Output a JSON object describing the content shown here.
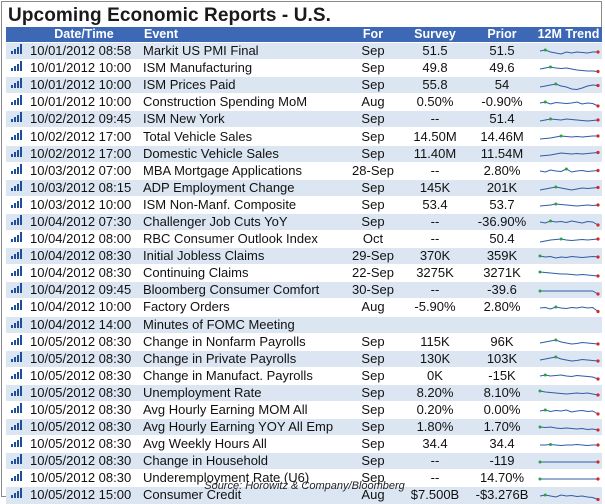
{
  "title": "Upcoming Economic Reports - U.S.",
  "headers": {
    "datetime": "Date/Time",
    "event": "Event",
    "for": "For",
    "survey": "Survey",
    "prior": "Prior",
    "trend": "12M Trend"
  },
  "rows": [
    {
      "datetime": "10/01/2012 08:58",
      "event": "Markit US PMI Final",
      "for": "Sep",
      "survey": "51.5",
      "prior": "51.5",
      "trend": [
        0.6,
        0.7,
        0.5,
        0.4,
        0.3,
        0.5,
        0.4,
        0.5,
        0.45,
        0.4,
        0.5,
        0.5
      ]
    },
    {
      "datetime": "10/01/2012 10:00",
      "event": "ISM Manufacturing",
      "for": "Sep",
      "survey": "49.8",
      "prior": "49.6",
      "trend": [
        0.5,
        0.6,
        0.7,
        0.6,
        0.55,
        0.6,
        0.5,
        0.4,
        0.35,
        0.3,
        0.3,
        0.25
      ]
    },
    {
      "datetime": "10/01/2012 10:00",
      "event": "ISM Prices Paid",
      "for": "Sep",
      "survey": "55.8",
      "prior": "54",
      "trend": [
        0.4,
        0.5,
        0.6,
        0.7,
        0.5,
        0.4,
        0.2,
        0.15,
        0.3,
        0.5,
        0.6,
        0.55
      ]
    },
    {
      "datetime": "10/01/2012 10:00",
      "event": "Construction Spending MoM",
      "for": "Aug",
      "survey": "0.50%",
      "prior": "-0.90%",
      "trend": [
        0.5,
        0.6,
        0.4,
        0.55,
        0.5,
        0.45,
        0.5,
        0.6,
        0.4,
        0.5,
        0.45,
        0.2
      ]
    },
    {
      "datetime": "10/02/2012 09:45",
      "event": "ISM New York",
      "for": "Sep",
      "survey": "--",
      "prior": "51.4",
      "trend": [
        0.4,
        0.5,
        0.6,
        0.55,
        0.5,
        0.6,
        0.55,
        0.5,
        0.45,
        0.4,
        0.45,
        0.5
      ]
    },
    {
      "datetime": "10/02/2012 17:00",
      "event": "Total Vehicle Sales",
      "for": "Sep",
      "survey": "14.50M",
      "prior": "14.46M",
      "trend": [
        0.3,
        0.35,
        0.4,
        0.5,
        0.6,
        0.55,
        0.5,
        0.55,
        0.5,
        0.55,
        0.6,
        0.6
      ]
    },
    {
      "datetime": "10/02/2012 17:00",
      "event": "Domestic Vehicle Sales",
      "for": "Sep",
      "survey": "11.40M",
      "prior": "11.54M",
      "trend": [
        0.3,
        0.35,
        0.4,
        0.5,
        0.6,
        0.55,
        0.5,
        0.55,
        0.5,
        0.55,
        0.6,
        0.65
      ]
    },
    {
      "datetime": "10/03/2012 07:00",
      "event": "MBA Mortgage Applications",
      "for": "28-Sep",
      "survey": "--",
      "prior": "2.80%",
      "trend": [
        0.5,
        0.4,
        0.6,
        0.5,
        0.45,
        0.7,
        0.4,
        0.5,
        0.55,
        0.45,
        0.5,
        0.55
      ]
    },
    {
      "datetime": "10/03/2012 08:15",
      "event": "ADP Employment Change",
      "for": "Sep",
      "survey": "145K",
      "prior": "201K",
      "trend": [
        0.3,
        0.4,
        0.5,
        0.6,
        0.5,
        0.4,
        0.3,
        0.4,
        0.5,
        0.45,
        0.5,
        0.55
      ]
    },
    {
      "datetime": "10/03/2012 10:00",
      "event": "ISM Non-Manf. Composite",
      "for": "Sep",
      "survey": "53.4",
      "prior": "53.7",
      "trend": [
        0.4,
        0.45,
        0.5,
        0.6,
        0.55,
        0.5,
        0.45,
        0.4,
        0.45,
        0.5,
        0.45,
        0.5
      ]
    },
    {
      "datetime": "10/04/2012 07:30",
      "event": "Challenger Job Cuts YoY",
      "for": "Sep",
      "survey": "--",
      "prior": "-36.90%",
      "trend": [
        0.5,
        0.4,
        0.6,
        0.5,
        0.55,
        0.45,
        0.6,
        0.5,
        0.4,
        0.55,
        0.5,
        0.2
      ]
    },
    {
      "datetime": "10/04/2012 08:00",
      "event": "RBC Consumer Outlook Index",
      "for": "Oct",
      "survey": "--",
      "prior": "50.4",
      "trend": [
        0.3,
        0.4,
        0.5,
        0.55,
        0.6,
        0.5,
        0.45,
        0.5,
        0.55,
        0.5,
        0.55,
        0.6
      ]
    },
    {
      "datetime": "10/04/2012 08:30",
      "event": "Initial Jobless Claims",
      "for": "29-Sep",
      "survey": "370K",
      "prior": "359K",
      "trend": [
        0.6,
        0.5,
        0.55,
        0.4,
        0.5,
        0.45,
        0.55,
        0.5,
        0.45,
        0.5,
        0.55,
        0.5
      ]
    },
    {
      "datetime": "10/04/2012 08:30",
      "event": "Continuing Claims",
      "for": "22-Sep",
      "survey": "3275K",
      "prior": "3271K",
      "trend": [
        0.7,
        0.65,
        0.6,
        0.55,
        0.5,
        0.5,
        0.45,
        0.4,
        0.45,
        0.4,
        0.35,
        0.3
      ]
    },
    {
      "datetime": "10/04/2012 09:45",
      "event": "Bloomberg Consumer Comfort",
      "for": "30-Sep",
      "survey": "--",
      "prior": "-39.6",
      "trend": [
        0.5,
        0.5,
        0.5,
        0.5,
        0.5,
        0.5,
        0.5,
        0.5,
        0.5,
        0.5,
        0.5,
        0.2
      ]
    },
    {
      "datetime": "10/04/2012 10:00",
      "event": "Factory Orders",
      "for": "Aug",
      "survey": "-5.90%",
      "prior": "2.80%",
      "trend": [
        0.5,
        0.55,
        0.4,
        0.6,
        0.5,
        0.45,
        0.55,
        0.5,
        0.6,
        0.5,
        0.55,
        0.15
      ]
    },
    {
      "datetime": "10/04/2012 14:00",
      "event": "Minutes of FOMC Meeting",
      "for": "",
      "survey": "",
      "prior": "",
      "trend": []
    },
    {
      "datetime": "10/05/2012 08:30",
      "event": "Change in Nonfarm Payrolls",
      "for": "Sep",
      "survey": "115K",
      "prior": "96K",
      "trend": [
        0.4,
        0.5,
        0.6,
        0.7,
        0.5,
        0.4,
        0.3,
        0.35,
        0.45,
        0.4,
        0.35,
        0.3
      ]
    },
    {
      "datetime": "10/05/2012 08:30",
      "event": "Change in Private Payrolls",
      "for": "Sep",
      "survey": "130K",
      "prior": "103K",
      "trend": [
        0.4,
        0.5,
        0.6,
        0.7,
        0.5,
        0.4,
        0.3,
        0.35,
        0.45,
        0.4,
        0.35,
        0.3
      ]
    },
    {
      "datetime": "10/05/2012 08:30",
      "event": "Change in Manufact. Payrolls",
      "for": "Sep",
      "survey": "0K",
      "prior": "-15K",
      "trend": [
        0.5,
        0.6,
        0.5,
        0.55,
        0.6,
        0.5,
        0.45,
        0.55,
        0.5,
        0.45,
        0.4,
        0.2
      ]
    },
    {
      "datetime": "10/05/2012 08:30",
      "event": "Unemployment Rate",
      "for": "Sep",
      "survey": "8.20%",
      "prior": "8.10%",
      "trend": [
        0.7,
        0.6,
        0.55,
        0.5,
        0.45,
        0.4,
        0.45,
        0.5,
        0.45,
        0.5,
        0.4,
        0.3
      ]
    },
    {
      "datetime": "10/05/2012 08:30",
      "event": "Avg Hourly Earning MOM All",
      "for": "Sep",
      "survey": "0.20%",
      "prior": "0.00%",
      "trend": [
        0.5,
        0.6,
        0.45,
        0.55,
        0.5,
        0.6,
        0.4,
        0.5,
        0.55,
        0.45,
        0.5,
        0.2
      ]
    },
    {
      "datetime": "10/05/2012 08:30",
      "event": "Avg Hourly Earning YOY All Emp",
      "for": "Sep",
      "survey": "1.80%",
      "prior": "1.70%",
      "trend": [
        0.6,
        0.55,
        0.6,
        0.5,
        0.45,
        0.5,
        0.45,
        0.4,
        0.45,
        0.35,
        0.4,
        0.3
      ]
    },
    {
      "datetime": "10/05/2012 08:30",
      "event": "Avg Weekly Hours All",
      "for": "Sep",
      "survey": "34.4",
      "prior": "34.4",
      "trend": [
        0.5,
        0.5,
        0.55,
        0.5,
        0.45,
        0.5,
        0.5,
        0.55,
        0.5,
        0.45,
        0.5,
        0.5
      ]
    },
    {
      "datetime": "10/05/2012 08:30",
      "event": "Change in Household",
      "for": "Sep",
      "survey": "--",
      "prior": "-119",
      "trend": [
        0.5,
        0.5,
        0.5,
        0.5,
        0.5,
        0.5,
        0.5,
        0.5,
        0.5,
        0.5,
        0.5,
        0.5
      ]
    },
    {
      "datetime": "10/05/2012 08:30",
      "event": "Underemployment Rate (U6)",
      "for": "Sep",
      "survey": "--",
      "prior": "14.70%",
      "trend": [
        0.5,
        0.5,
        0.5,
        0.5,
        0.5,
        0.5,
        0.5,
        0.5,
        0.5,
        0.5,
        0.5,
        0.5
      ]
    },
    {
      "datetime": "10/05/2012 15:00",
      "event": "Consumer Credit",
      "for": "Aug",
      "survey": "$7.500B",
      "prior": "-$3.276B",
      "trend": [
        0.5,
        0.6,
        0.5,
        0.4,
        0.6,
        0.5,
        0.55,
        0.45,
        0.5,
        0.4,
        0.35,
        0.15
      ]
    }
  ],
  "source": "Source: Horowitz & Company/Bloomberg",
  "colors": {
    "header_bg": "#3c68b6",
    "row_alt": "#dce6f2",
    "spark_line": "#2e5ca8",
    "spark_last": "#d62828",
    "spark_first": "#2ea043",
    "bar_icon": "#1f4e9a"
  }
}
